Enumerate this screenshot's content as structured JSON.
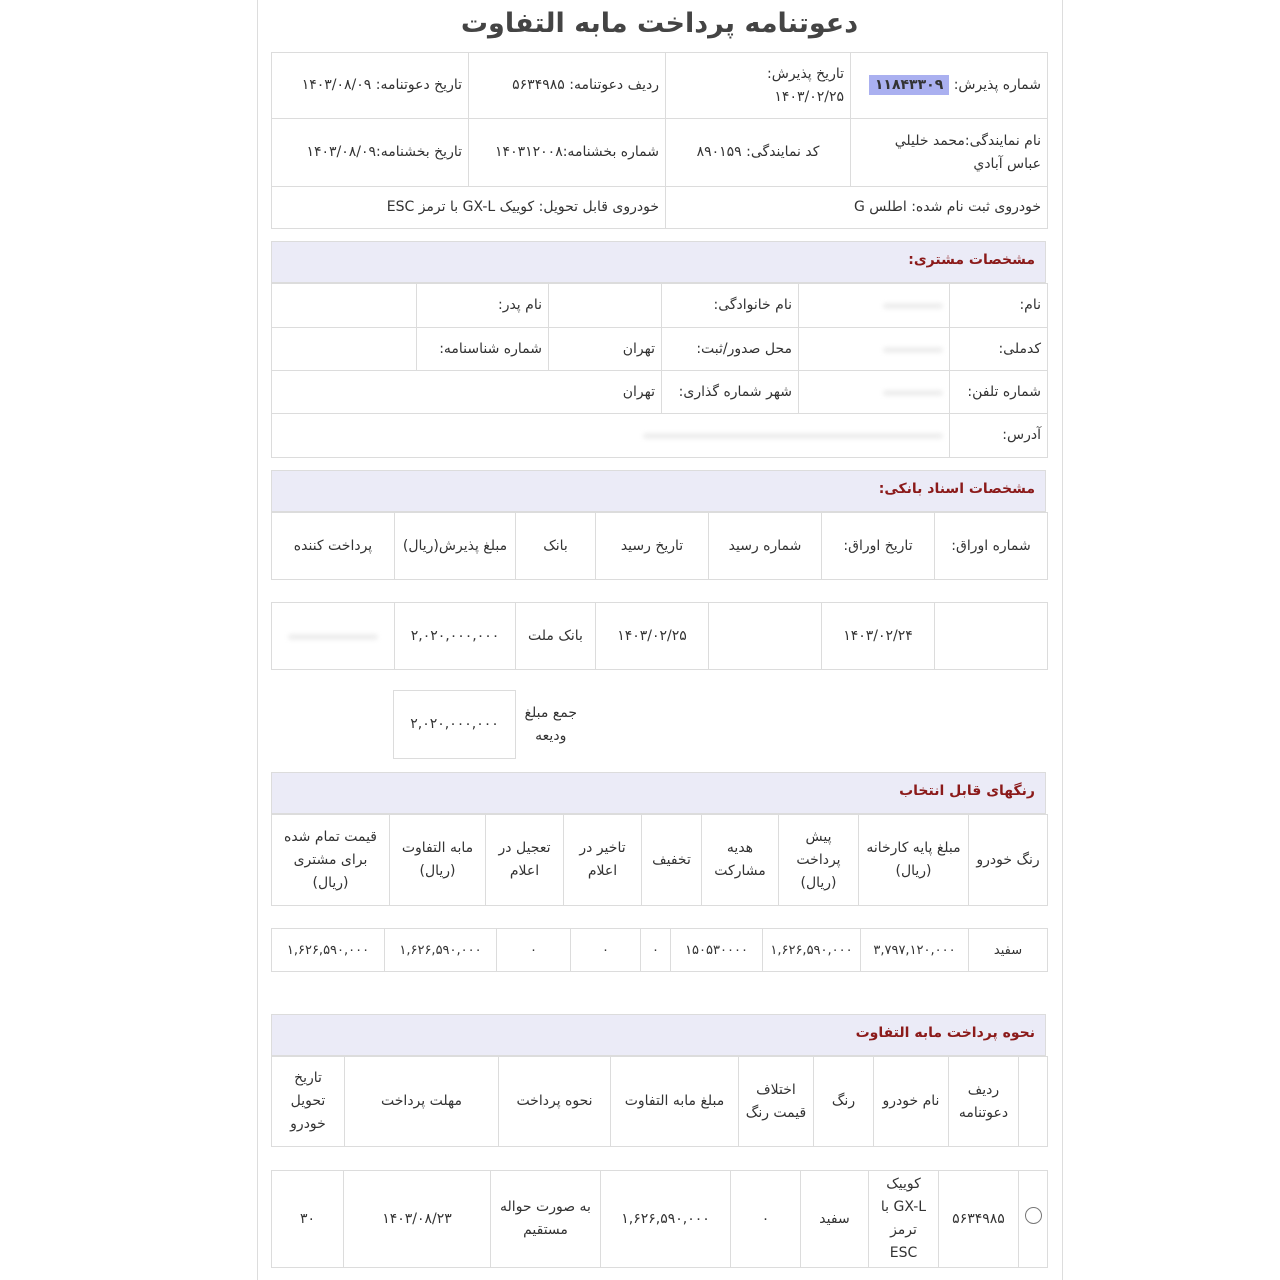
{
  "title": "دعوتنامه پرداخت مابه التفاوت",
  "info": {
    "acceptance_no_label": "شماره پذیرش:",
    "acceptance_no": "۱۱۸۴۳۳۰۹",
    "acceptance_date_label": "تاریخ پذیرش:",
    "acceptance_date": "۱۴۰۳/۰۲/۲۵",
    "invite_row": "ردیف دعوتنامه: ۵۶۳۴۹۸۵",
    "invite_date": "تاریخ دعوتنامه: ۱۴۰۳/۰۸/۰۹",
    "agency_name": "نام نمایندگی:محمد خلیلي عباس آبادي",
    "agency_code": "کد نمایندگی: ۸۹۰۱۵۹",
    "circular_no": "شماره بخشنامه:۱۴۰۳۱۲۰۰۸",
    "circular_date": "تاریخ بخشنامه:۱۴۰۳/۰۸/۰۹",
    "registered_car": "خودروی ثبت نام شده: اطلس G",
    "deliverable_car": "خودروی قابل تحویل: کوییک GX-L با ترمز ESC"
  },
  "customer": {
    "heading": "مشخصات مشتری:",
    "name_label": "نام:",
    "family_label": "نام خانوادگی:",
    "father_label": "نام پدر:",
    "national_id_label": "کدملی:",
    "issue_place_label": "محل صدور/ثبت:",
    "issue_place": "تهران",
    "id_no_label": "شماره شناسنامه:",
    "phone_label": "شماره تلفن:",
    "phone_city_label": "شهر شماره گذاری:",
    "phone_city": "تهران",
    "address_label": "آدرس:"
  },
  "bank": {
    "heading": "مشخصات اسناد بانکی:",
    "columns": [
      "شماره اوراق:",
      "تاریخ اوراق:",
      "شماره رسید",
      "تاریخ رسید",
      "بانک",
      "مبلغ پذیرش(ریال)",
      "پرداخت کننده"
    ],
    "row": [
      "",
      "۱۴۰۳/۰۲/۲۴",
      "",
      "۱۴۰۳/۰۲/۲۵",
      "بانک ملت",
      "۲,۰۲۰,۰۰۰,۰۰۰",
      ""
    ],
    "total_label": "جمع مبلغ ودیعه",
    "total": "۲,۰۲۰,۰۰۰,۰۰۰"
  },
  "colors": {
    "heading": "رنگهای قابل انتخاب",
    "columns": [
      "رنگ خودرو",
      "مبلغ پایه کارخانه (ریال)",
      "پیش پرداخت (ریال)",
      "هدیه مشارکت",
      "تخفیف",
      "تاخیر در اعلام",
      "تعجیل در اعلام",
      "مابه التفاوت (ریال)",
      "قیمت تمام شده برای مشتری (ریال)"
    ],
    "row": [
      "سفید",
      "۳,۷۹۷,۱۲۰,۰۰۰",
      "۱,۶۲۶,۵۹۰,۰۰۰",
      "۱۵۰۵۳۰۰۰۰",
      "۰",
      "۰",
      "۰",
      "۱,۶۲۶,۵۹۰,۰۰۰",
      "۱,۶۲۶,۵۹۰,۰۰۰"
    ]
  },
  "payment": {
    "heading": "نحوه پرداخت مابه التفاوت",
    "columns": [
      "",
      "ردیف دعوتنامه",
      "نام خودرو",
      "رنگ",
      "اختلاف قیمت رنگ",
      "مبلغ مابه التفاوت",
      "نحوه پرداخت",
      "مهلت پرداخت",
      "تاریخ تحویل خودرو"
    ],
    "row": [
      "",
      "۵۶۳۴۹۸۵",
      "کوییک GX-L با ترمز ESC",
      "سفید",
      "۰",
      "۱,۶۲۶,۵۹۰,۰۰۰",
      "به صورت حواله مستقیم",
      "۱۴۰۳/۰۸/۲۳",
      "۳۰"
    ]
  }
}
